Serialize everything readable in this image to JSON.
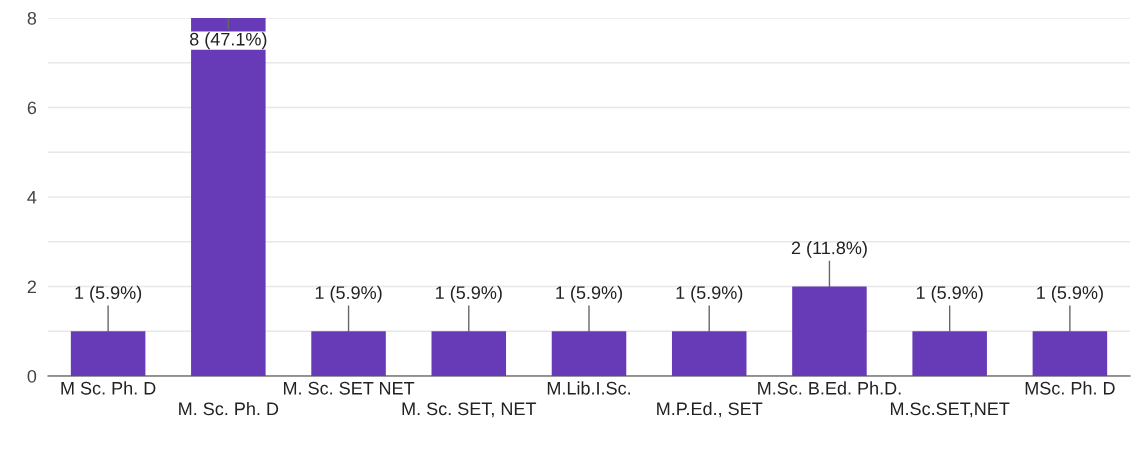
{
  "chart_data": {
    "type": "bar",
    "categories": [
      "M Sc. Ph. D",
      "M. Sc. Ph. D",
      "M. Sc. SET NET",
      "M. Sc. SET, NET",
      "M.Lib.I.Sc.",
      "M.P.Ed., SET",
      "M.Sc. B.Ed. Ph.D.",
      "M.Sc.SET,NET",
      "MSc. Ph. D"
    ],
    "values": [
      1,
      8,
      1,
      1,
      1,
      1,
      2,
      1,
      1
    ],
    "value_labels": [
      "1 (5.9%)",
      "8 (47.1%)",
      "1 (5.9%)",
      "1 (5.9%)",
      "1 (5.9%)",
      "1 (5.9%)",
      "2 (11.8%)",
      "1 (5.9%)",
      "1 (5.9%)"
    ],
    "color": "#673ab7",
    "ylim": [
      0,
      8
    ],
    "yticks": [
      0,
      {
        "value": 1,
        "label": null
      },
      2,
      {
        "value": 3,
        "label": null
      },
      4,
      {
        "value": 5,
        "label": null
      },
      6,
      {
        "value": 7,
        "label": null
      },
      8
    ],
    "grid": "y"
  }
}
